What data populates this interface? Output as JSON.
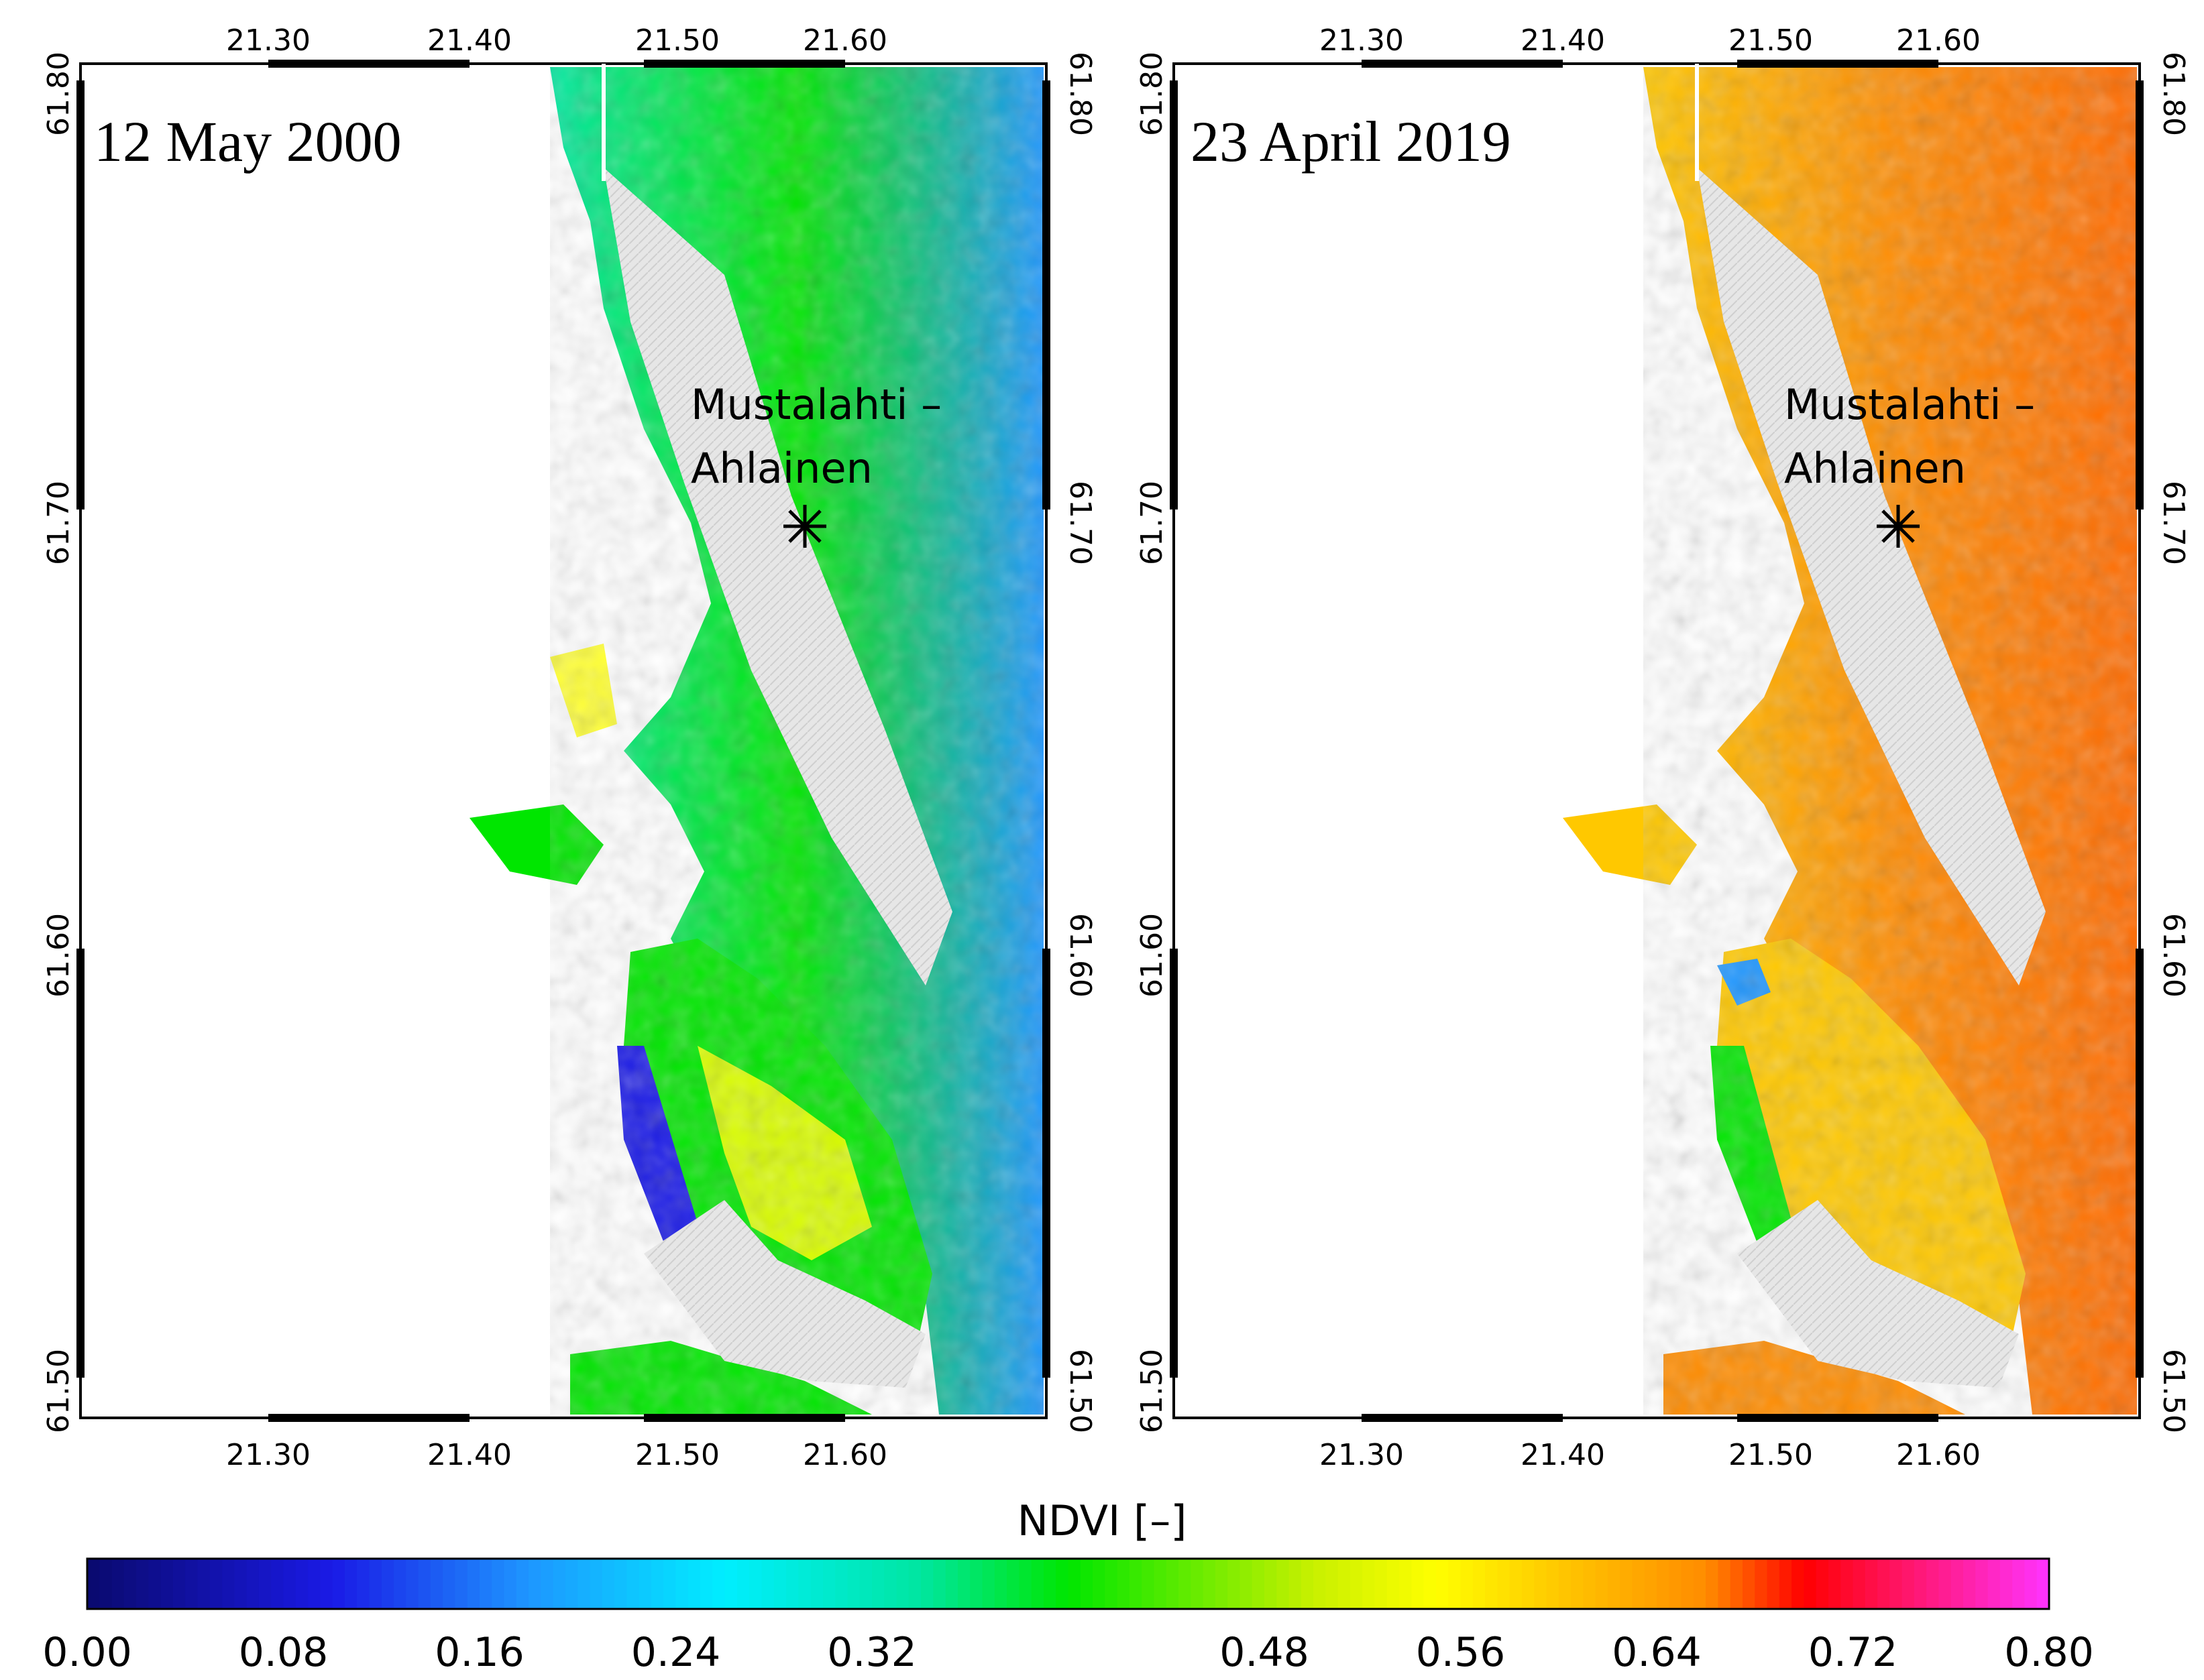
{
  "panels": [
    {
      "date_label": "12 May 2000",
      "site_label_line1": "Mustalahti –",
      "site_label_line2": "Ahlainen",
      "site_marker": "asterisk-icon",
      "palette": "early"
    },
    {
      "date_label": "23 April 2019",
      "site_label_line1": "Mustalahti –",
      "site_label_line2": "Ahlainen",
      "site_marker": "asterisk-icon",
      "palette": "late"
    }
  ],
  "axes": {
    "lon_ticks": [
      "21.30",
      "21.40",
      "21.50",
      "21.60"
    ],
    "lat_ticks": [
      "61.50",
      "61.60",
      "61.70",
      "61.80"
    ]
  },
  "colorbar": {
    "title": "NDVI [–]",
    "tick_labels": [
      "0.00",
      "0.08",
      "0.16",
      "0.24",
      "0.32",
      "0.48",
      "0.56",
      "0.64",
      "0.72",
      "0.80"
    ],
    "tick_values": [
      0.0,
      0.08,
      0.16,
      0.24,
      0.32,
      0.48,
      0.56,
      0.64,
      0.72,
      0.8
    ],
    "range": [
      0.0,
      0.8
    ],
    "stops": [
      {
        "v": 0.0,
        "color": "#0a0a6e"
      },
      {
        "v": 0.1,
        "color": "#1a1ae6"
      },
      {
        "v": 0.18,
        "color": "#1e96ff"
      },
      {
        "v": 0.26,
        "color": "#00eeff"
      },
      {
        "v": 0.34,
        "color": "#00e6a0"
      },
      {
        "v": 0.4,
        "color": "#00e600"
      },
      {
        "v": 0.5,
        "color": "#c8f000"
      },
      {
        "v": 0.55,
        "color": "#ffff00"
      },
      {
        "v": 0.6,
        "color": "#ffc800"
      },
      {
        "v": 0.66,
        "color": "#ff8c00"
      },
      {
        "v": 0.7,
        "color": "#ff0000"
      },
      {
        "v": 0.8,
        "color": "#ff33ff"
      }
    ]
  },
  "colors": {
    "mask_gray": "#e3e3e3",
    "frame": "#000000"
  }
}
